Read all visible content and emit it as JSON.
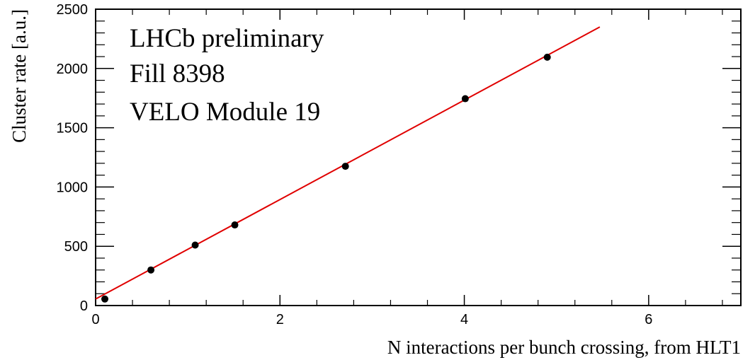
{
  "chart_data": {
    "type": "scatter",
    "title": "",
    "xlabel": "N interactions per bunch crossing, from HLT1",
    "ylabel": "Cluster rate [a.u.]",
    "xlim": [
      0,
      7
    ],
    "ylim": [
      0,
      2500
    ],
    "xticks": [
      0,
      2,
      4,
      6
    ],
    "xtick_labels": [
      "0",
      "2",
      "4",
      "6"
    ],
    "yticks": [
      0,
      500,
      1000,
      1500,
      2000,
      2500
    ],
    "ytick_labels": [
      "0",
      "500",
      "1000",
      "1500",
      "2000",
      "2500"
    ],
    "grid": false,
    "legend": "none",
    "annotations": [
      "LHCb preliminary",
      "Fill 8398",
      "VELO Module 19"
    ],
    "series": [
      {
        "values_x": [
          0.1,
          0.6,
          1.08,
          1.51,
          2.71,
          4.01,
          4.9
        ],
        "values_y": [
          55,
          300,
          510,
          680,
          1175,
          1745,
          2095
        ],
        "marker": "circle",
        "color": "#000000"
      }
    ],
    "fit": {
      "x": [
        0,
        5.47
      ],
      "y": [
        55,
        2350
      ],
      "color": "#e00000"
    }
  }
}
